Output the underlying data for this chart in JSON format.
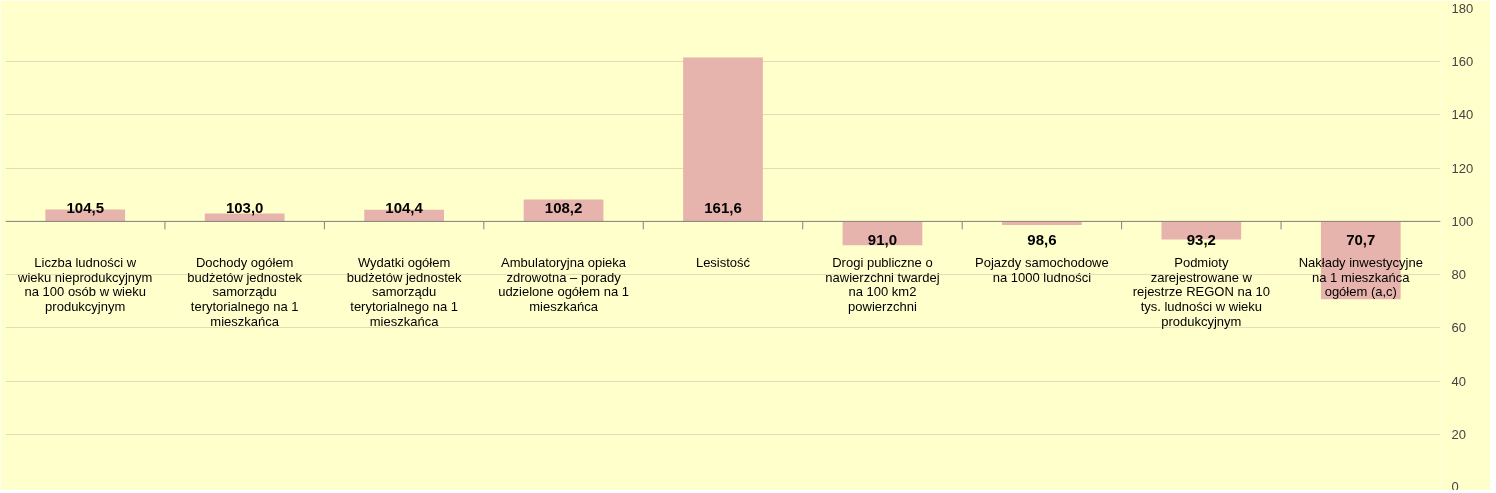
{
  "chart_data": {
    "type": "bar",
    "categories": [
      "Liczba ludności w wieku nieprodukcyjnym na 100 osób w wieku produkcyjnym",
      "Dochody ogółem budżetów jednostek samorządu terytorialnego na 1 mieszkańca",
      "Wydatki ogółem budżetów jednostek samorządu terytorialnego na 1 mieszkańca",
      "Ambulatoryjna opieka zdrowotna – porady udzielone ogółem na 1 mieszkańca",
      "Lesistość",
      "Drogi publiczne o nawierzchni twardej na 100 km2 powierzchni",
      "Pojazdy samochodowe na 1000 ludności",
      "Podmioty zarejestrowane w rejestrze REGON na 10 tys. ludności w wieku produkcyjnym",
      "Nakłady inwestycyjne na 1 mieszkańca ogółem (a,c)"
    ],
    "base": [
      100,
      100,
      100,
      100,
      100,
      100,
      100,
      100,
      100
    ],
    "values": [
      4.5,
      3.0,
      4.4,
      8.2,
      61.6,
      -9.0,
      -1.4,
      -6.8,
      -29.3
    ],
    "value_labels": [
      "104,5",
      "103,0",
      "104,4",
      "108,2",
      "161,6",
      "91,0",
      "98,6",
      "93,2",
      "70,7"
    ],
    "color": "#e6b4ac",
    "ylim": [
      0,
      180
    ],
    "yticks": [
      0,
      20,
      40,
      60,
      80,
      100,
      120,
      140,
      160,
      180
    ],
    "grid": "y"
  }
}
